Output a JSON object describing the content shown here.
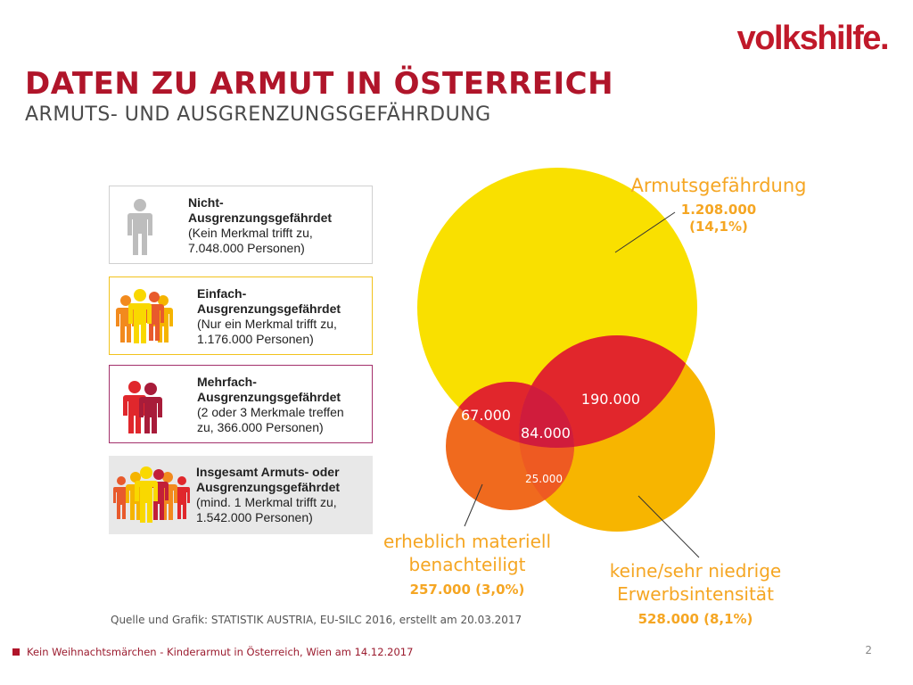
{
  "logo": "volkshilfe.",
  "header": {
    "title": "DATEN ZU ARMUT IN ÖSTERREICH",
    "subtitle": "ARMUTS- UND AUSGRENZUNGSGEFÄHRDUNG"
  },
  "legend": [
    {
      "title1": "Nicht-",
      "title2": "Ausgrenzungsgefährdet",
      "line1": "(Kein Merkmal trifft zu,",
      "line2": "7.048.000 Personen)"
    },
    {
      "title1": "Einfach-",
      "title2": "Ausgrenzungsgefährdet",
      "line1": "(Nur ein Merkmal trifft zu,",
      "line2": "1.176.000 Personen)"
    },
    {
      "title1": "Mehrfach-",
      "title2": "Ausgrenzungsgefährdet",
      "line1": "(2 oder 3 Merkmale treffen",
      "line2": "zu, 366.000 Personen)"
    },
    {
      "title1": "Insgesamt Armuts- oder",
      "title2": "Ausgrenzungsgefährdet",
      "line1": "(mind. 1  Merkmal trifft zu,",
      "line2": "1.542.000 Personen)"
    }
  ],
  "venn": {
    "armut": {
      "label": "Armutsgefährdung",
      "value": "1.208.000",
      "pct": "(14,1%)",
      "color": "#f9e000"
    },
    "materiell": {
      "label1": "erheblich materiell",
      "label2": "benachteiligt",
      "value": "257.000 (3,0%)",
      "color": "#f06a1e"
    },
    "erwerb": {
      "label1": "keine/sehr niedrige",
      "label2": "Erwerbsintensität",
      "value": "528.000 (8,1%)",
      "color": "#f7b500"
    },
    "overlap_armut_materiell": "67.000",
    "overlap_armut_erwerb": "190.000",
    "overlap_all": "84.000",
    "overlap_materiell_erwerb": "25.000",
    "colors": {
      "overlap2": "#e1262c",
      "overlap3": "#d01c3c",
      "label_orange": "#f5a623"
    }
  },
  "source": "Quelle und Grafik: STATISTIK AUSTRIA, EU-SILC 2016, erstellt am 20.03.2017",
  "footer": {
    "text": "Kein Weihnachtsmärchen - Kinderarmut in Österreich, Wien am 14.12.2017",
    "page": "2"
  }
}
